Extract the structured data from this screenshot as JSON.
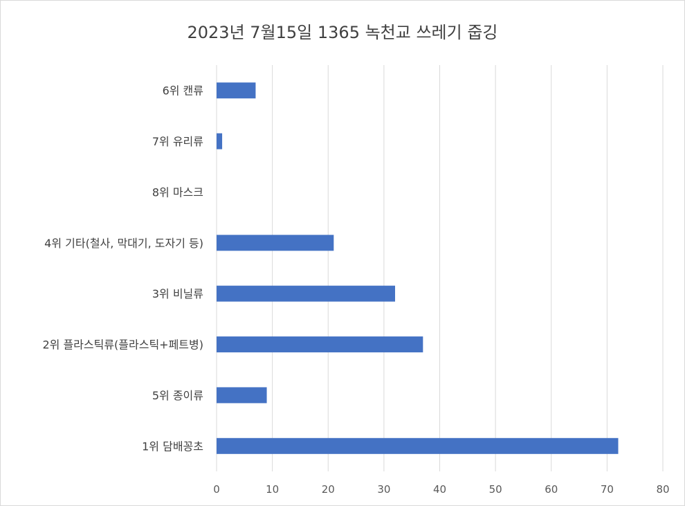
{
  "chart_data": {
    "type": "bar",
    "orientation": "horizontal",
    "title": "2023년 7월15일 1365 녹천교 쓰레기 줍깅",
    "xlabel": "",
    "ylabel": "",
    "categories": [
      "6위 캔류",
      "7위 유리류",
      "8위 마스크",
      "4위 기타(철사, 막대기, 도자기 등)",
      "3위 비닐류",
      "2위 플라스틱류(플라스틱+페트병)",
      "5위 종이류",
      "1위 담배꽁초"
    ],
    "series": [
      {
        "values": [
          7,
          1,
          0,
          21,
          32,
          37,
          9,
          72
        ]
      }
    ],
    "xlim": [
      0,
      80
    ],
    "xticks": [
      "0",
      "10",
      "20",
      "30",
      "40",
      "50",
      "60",
      "70",
      "80"
    ],
    "grid": true,
    "legend": "none",
    "colors": {
      "bar": "#4472c4",
      "grid": "#d9d9d9",
      "text": "#404040"
    }
  }
}
